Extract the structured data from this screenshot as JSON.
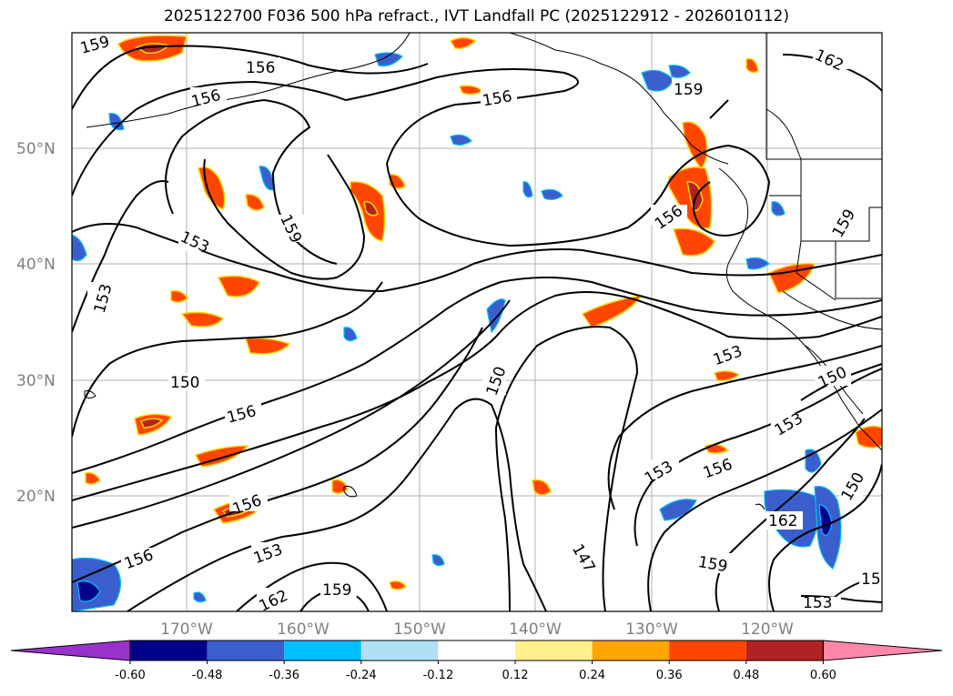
{
  "title": "2025122700 F036 500 hPa refract., IVT Landfall PC (2025122912 - 2026010112)",
  "lat_labels": [
    "50°N",
    "40°N",
    "30°N",
    "20°N"
  ],
  "lon_labels": [
    "170°W",
    "160°W",
    "150°W",
    "140°W",
    "130°W",
    "120°W"
  ],
  "contour_labels": [
    "159",
    "156",
    "156",
    "156",
    "159",
    "162",
    "159",
    "153",
    "153",
    "156",
    "159",
    "153",
    "150",
    "156",
    "150",
    "150",
    "153",
    "156",
    "153",
    "150",
    "153",
    "156",
    "162",
    "147",
    "159",
    "156",
    "159",
    "162",
    "153",
    "15"
  ],
  "colorbar": {
    "ticks": [
      "-0.60",
      "-0.48",
      "-0.36",
      "-0.24",
      "-0.12",
      "0.12",
      "0.24",
      "0.36",
      "0.48",
      "0.60"
    ],
    "colors": [
      "#9932cc",
      "#00008b",
      "#3a5fcd",
      "#00bfff",
      "#b0e0f8",
      "#ffffff",
      "#fff08c",
      "#ffa500",
      "#ff4500",
      "#b22222",
      "#ff88aa"
    ]
  }
}
